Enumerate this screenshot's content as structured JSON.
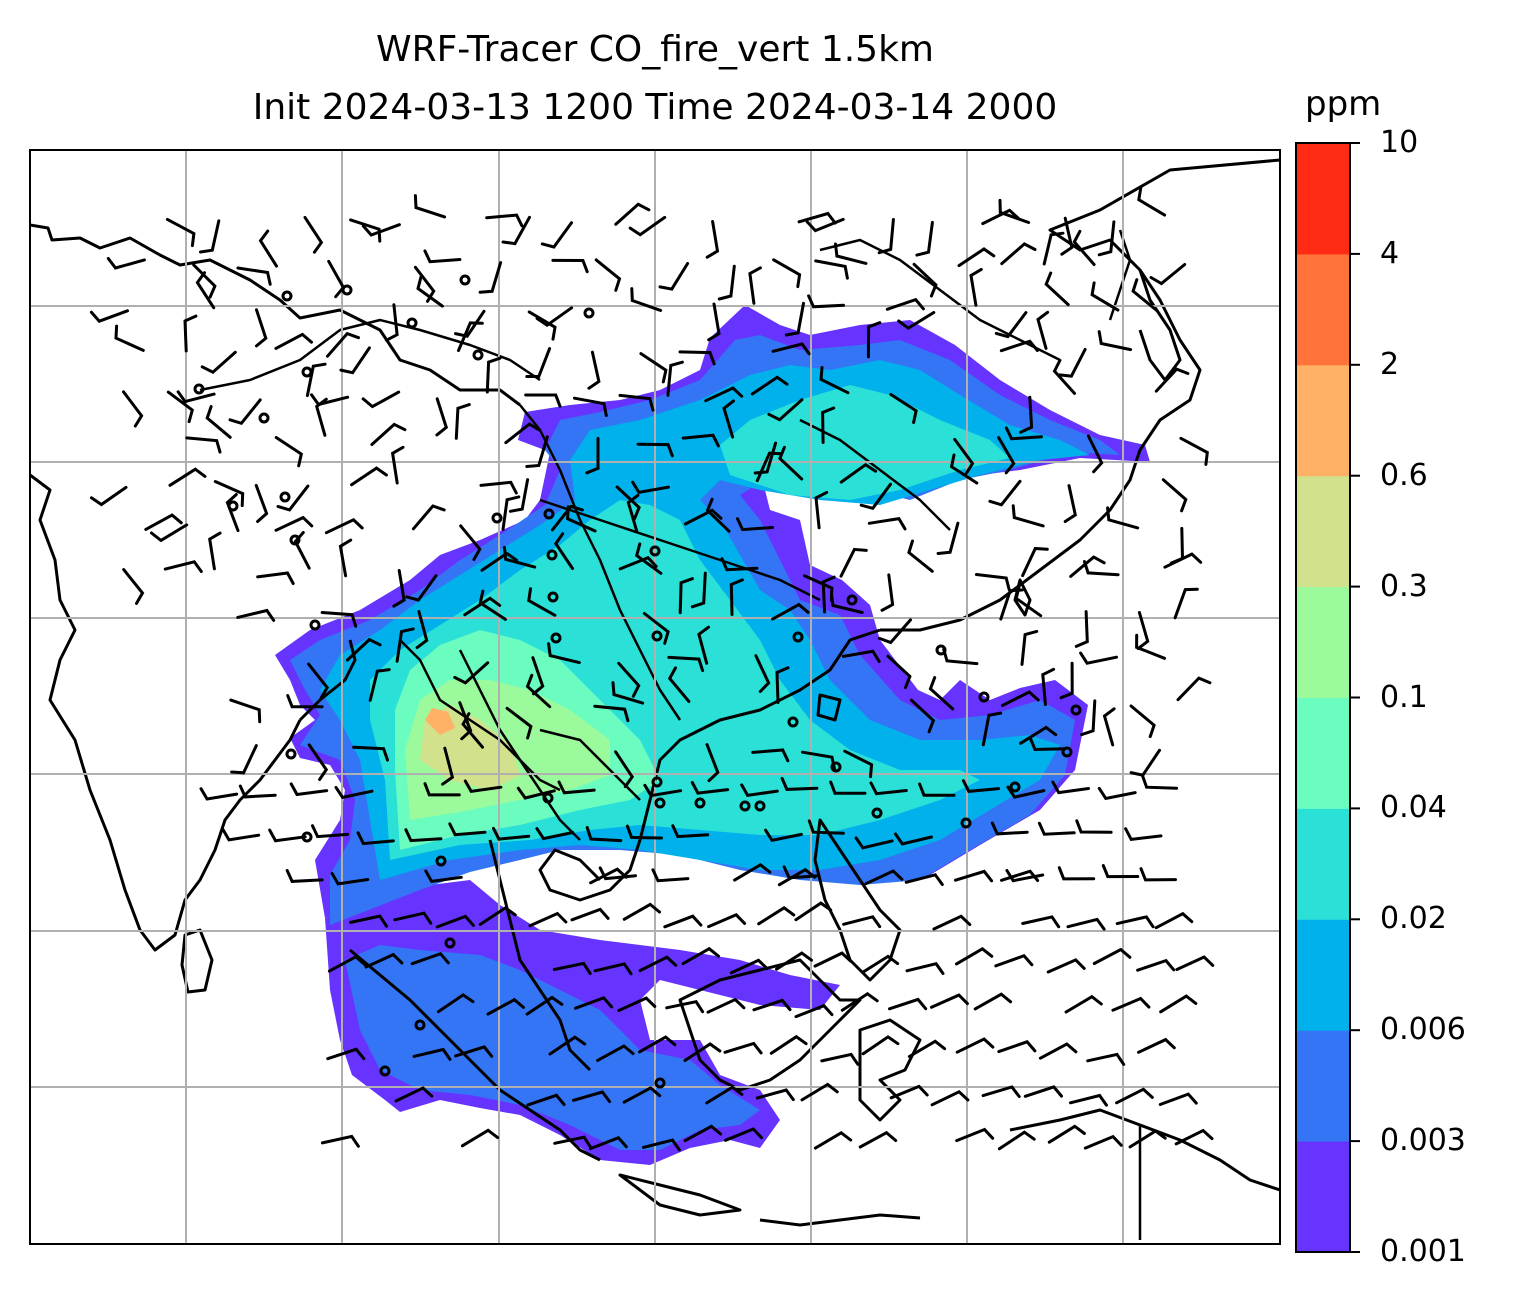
{
  "title": {
    "line1": "WRF-Tracer CO_fire_vert 1.5km",
    "line2": "Init 2024-03-13 1200 Time 2024-03-14 2000"
  },
  "colorbar": {
    "units": "ppm",
    "labels": [
      "0.001",
      "0.003",
      "0.006",
      "0.02",
      "0.04",
      "0.1",
      "0.3",
      "0.6",
      "2",
      "4",
      "10"
    ],
    "colors": [
      "#6633ff",
      "#3375f5",
      "#00b1eb",
      "#2ae0d7",
      "#6bfcc0",
      "#9bfa9c",
      "#d1e18c",
      "#ffb266",
      "#ff7239",
      "#ff2b15"
    ]
  },
  "map": {
    "gridlines": true,
    "features": [
      "coastlines",
      "country-borders",
      "gridlines",
      "wind-barbs",
      "tracer-concentration-fill"
    ]
  }
}
